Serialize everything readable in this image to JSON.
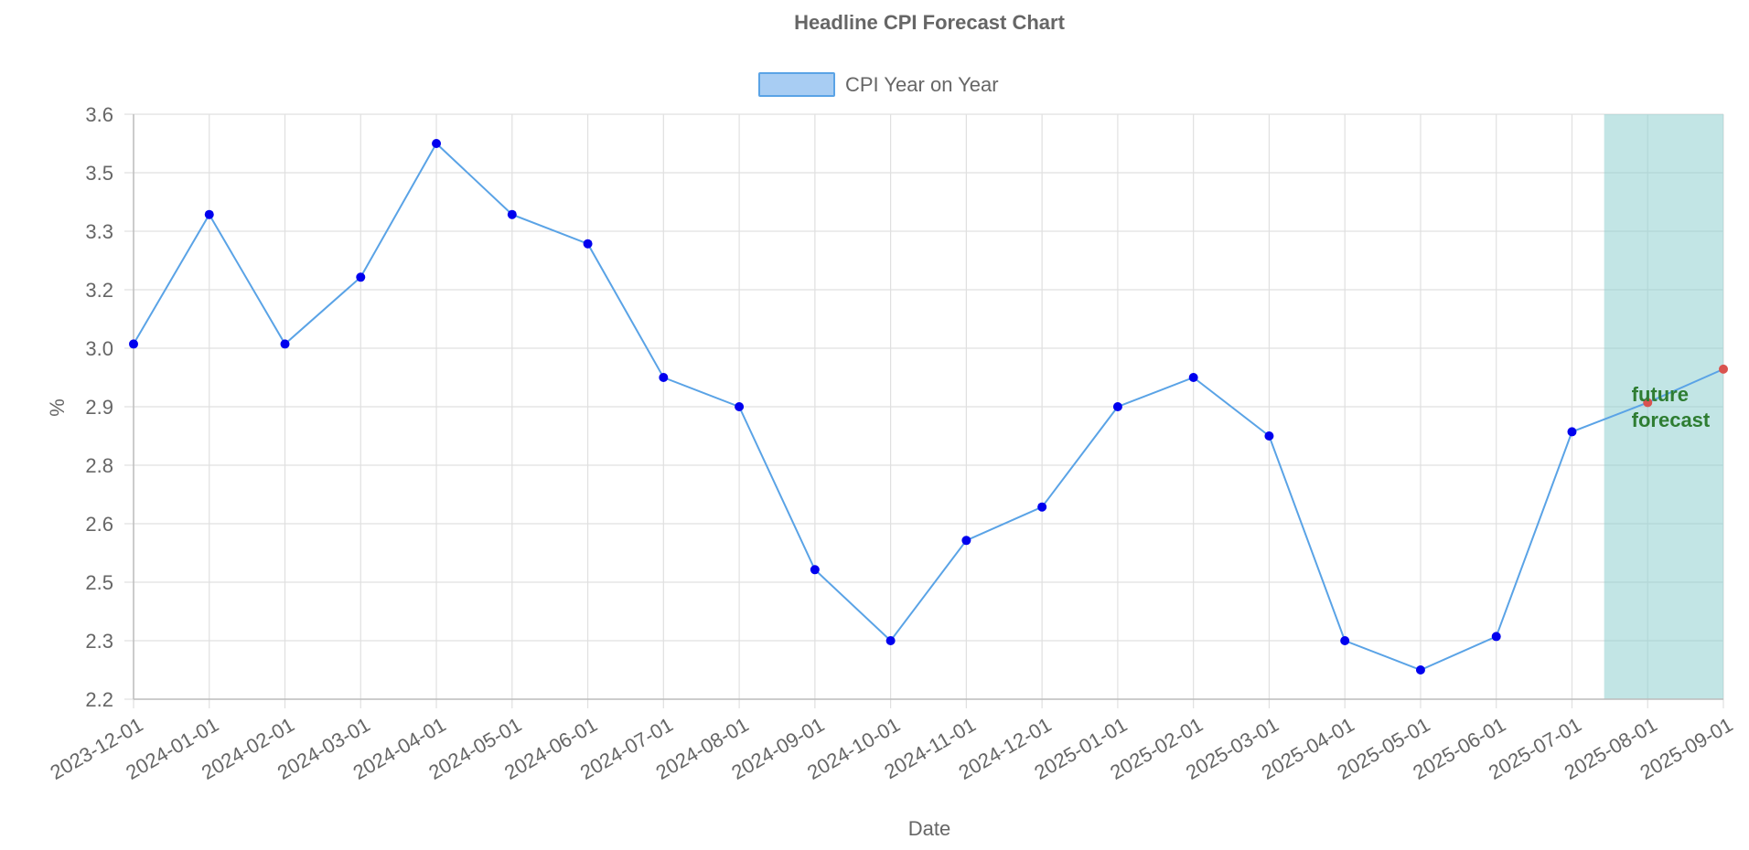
{
  "chart_data": {
    "type": "line",
    "title": "Headline CPI Forecast Chart",
    "xlabel": "Date",
    "ylabel": "%",
    "x": [
      "2023-12-01",
      "2024-01-01",
      "2024-02-01",
      "2024-03-01",
      "2024-04-01",
      "2024-05-01",
      "2024-06-01",
      "2024-07-01",
      "2024-08-01",
      "2024-09-01",
      "2024-10-01",
      "2024-11-01",
      "2024-12-01",
      "2025-01-01",
      "2025-02-01",
      "2025-03-01",
      "2025-04-01",
      "2025-05-01",
      "2025-06-01",
      "2025-07-01",
      "2025-08-01",
      "2025-09-01"
    ],
    "yticks": [
      "3.6",
      "3.5",
      "3.3",
      "3.2",
      "3.0",
      "2.9",
      "2.8",
      "2.6",
      "2.5",
      "2.3",
      "2.2"
    ],
    "ylim": [
      2.2,
      3.6
    ],
    "legend_position": "top-center",
    "grid": true,
    "series": [
      {
        "name": "CPI Year on Year",
        "values": [
          3.05,
          3.36,
          3.05,
          3.21,
          3.53,
          3.36,
          3.29,
          2.97,
          2.9,
          2.51,
          2.34,
          2.58,
          2.66,
          2.9,
          2.97,
          2.83,
          2.34,
          2.27,
          2.35,
          2.84,
          2.91,
          2.99
        ],
        "point_colors": [
          "#0000ee",
          "#0000ee",
          "#0000ee",
          "#0000ee",
          "#0000ee",
          "#0000ee",
          "#0000ee",
          "#0000ee",
          "#0000ee",
          "#0000ee",
          "#0000ee",
          "#0000ee",
          "#0000ee",
          "#0000ee",
          "#0000ee",
          "#0000ee",
          "#0000ee",
          "#0000ee",
          "#0000ee",
          "#0000ee",
          "#d9534f",
          "#d9534f"
        ]
      }
    ],
    "annotations": [
      {
        "type": "box",
        "x_start": "2025-07-15",
        "x_end": "2025-09-01",
        "color": "#8fd0d0",
        "label_lines": [
          "future",
          "forecast"
        ],
        "label_color": "#2e7d32"
      }
    ],
    "colors": {
      "line": "#5aa3e6",
      "legend_fill": "#a8cdf3",
      "legend_stroke": "#5aa3e6",
      "grid": "#e0e0e0",
      "axis": "#bdbdbd"
    }
  }
}
